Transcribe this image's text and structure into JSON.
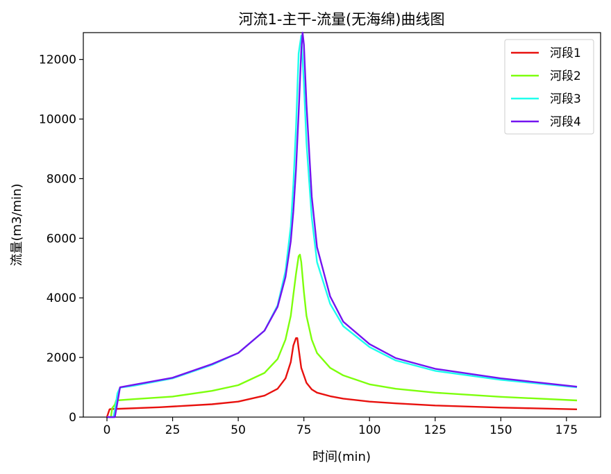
{
  "chart_data": {
    "type": "line",
    "title": "河流1-主干-流量(无海绵)曲线图",
    "xlabel": "时间(min)",
    "ylabel": "流量(m3/min)",
    "xlim": [
      -9,
      188
    ],
    "ylim": [
      0,
      12900
    ],
    "xticks": [
      0,
      25,
      50,
      75,
      100,
      125,
      150,
      175
    ],
    "yticks": [
      0,
      2000,
      4000,
      6000,
      8000,
      10000,
      12000
    ],
    "grid": false,
    "legend": "top-right",
    "series": [
      {
        "name": "河段1",
        "color": "#e8110e",
        "x": [
          0,
          1,
          1.5,
          5,
          20,
          40,
          50,
          60,
          65,
          68,
          70,
          71,
          72,
          72.5,
          73,
          74,
          76,
          78,
          80,
          85,
          90,
          100,
          110,
          125,
          150,
          179
        ],
        "y": [
          0,
          260,
          270,
          280,
          330,
          430,
          520,
          720,
          950,
          1300,
          1850,
          2400,
          2650,
          2650,
          2300,
          1650,
          1150,
          930,
          820,
          700,
          620,
          520,
          460,
          390,
          320,
          260
        ]
      },
      {
        "name": "河段2",
        "color": "#7dff0c",
        "x": [
          0,
          1.5,
          2,
          3,
          3.5,
          10,
          25,
          40,
          50,
          60,
          65,
          68,
          70,
          71,
          72,
          73,
          73.5,
          74,
          75,
          76,
          78,
          80,
          85,
          90,
          100,
          110,
          125,
          150,
          179
        ],
        "y": [
          0,
          0,
          300,
          420,
          560,
          600,
          690,
          880,
          1070,
          1480,
          1950,
          2600,
          3400,
          4100,
          4800,
          5400,
          5450,
          5200,
          4200,
          3400,
          2600,
          2150,
          1650,
          1400,
          1100,
          950,
          820,
          680,
          560
        ]
      },
      {
        "name": "河段3",
        "color": "#1fffed",
        "x": [
          0,
          2.5,
          3,
          4,
          5,
          10,
          25,
          40,
          50,
          60,
          65,
          68,
          70,
          71,
          72,
          73,
          74,
          75,
          76,
          78,
          80,
          85,
          90,
          100,
          110,
          125,
          150,
          179
        ],
        "y": [
          0,
          0,
          250,
          800,
          990,
          1050,
          1300,
          1750,
          2150,
          2900,
          3750,
          4900,
          6400,
          7800,
          9700,
          12200,
          12800,
          11200,
          9200,
          6700,
          5200,
          3800,
          3050,
          2350,
          1900,
          1550,
          1250,
          1000
        ]
      },
      {
        "name": "河段4",
        "color": "#7314f0",
        "x": [
          0,
          3,
          4,
          5,
          10,
          25,
          40,
          50,
          60,
          65,
          68,
          70,
          71,
          72,
          73,
          74,
          74.5,
          75,
          76,
          78,
          80,
          85,
          90,
          100,
          110,
          125,
          150,
          179
        ],
        "y": [
          0,
          0,
          500,
          1000,
          1080,
          1320,
          1780,
          2150,
          2900,
          3700,
          4700,
          5900,
          6900,
          8300,
          10200,
          12300,
          12900,
          12500,
          10500,
          7400,
          5700,
          4050,
          3200,
          2450,
          1980,
          1620,
          1300,
          1020
        ]
      }
    ]
  }
}
